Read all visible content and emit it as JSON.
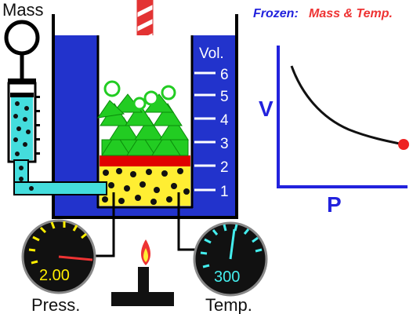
{
  "labels": {
    "mass": "Mass",
    "frozen_prefix": "Frozen:",
    "frozen_vars": "Mass & Temp.",
    "volume": "Vol.",
    "pressure": "Press.",
    "temperature": "Temp."
  },
  "volume_scale": [
    "1",
    "2",
    "3",
    "4",
    "5",
    "6"
  ],
  "gauges": {
    "pressure": {
      "value": "2.00",
      "color": "#ffee00"
    },
    "temperature": {
      "value": "300",
      "color": "#44eeee"
    }
  },
  "graph": {
    "y_label": "V",
    "x_label": "P"
  },
  "colors": {
    "water": "#2233cc",
    "piston": "#e00000",
    "gas": "#ffee33",
    "molecule": "#111111",
    "mass_block": "#22cc22",
    "syringe": "#44dddd",
    "label_blue": "#2222dd",
    "label_red": "#ee3333",
    "graph_point": "#ee2222"
  }
}
